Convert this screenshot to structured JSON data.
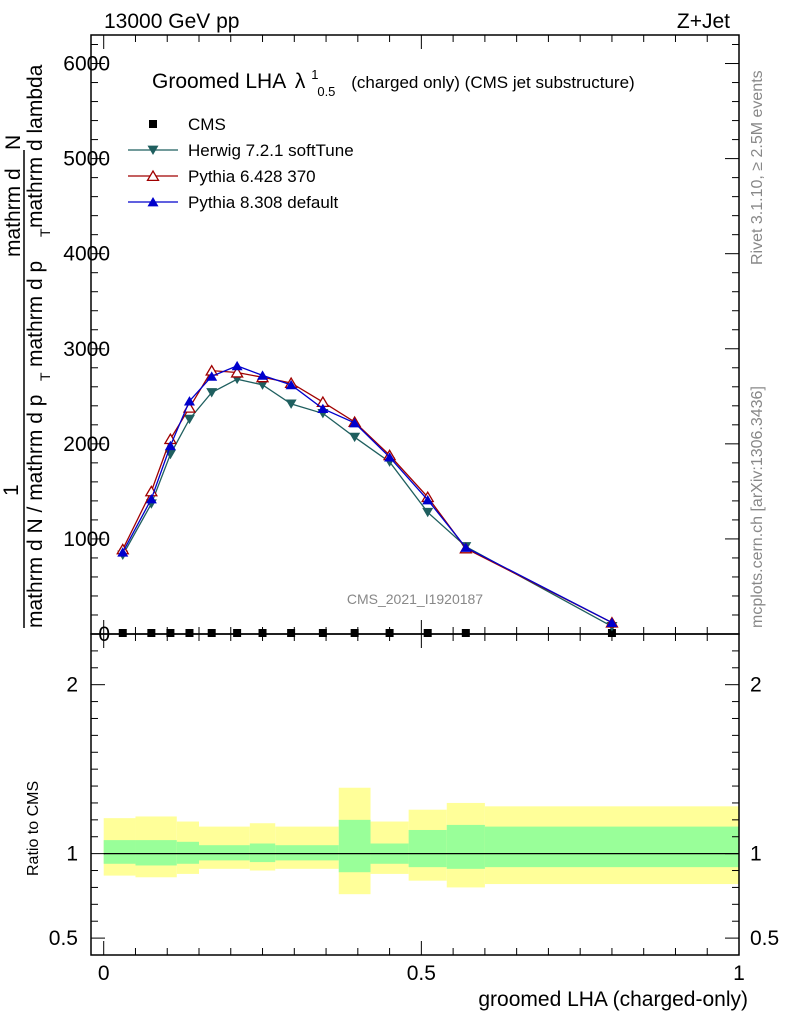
{
  "header": {
    "left": "13000 GeV pp",
    "right": "Z+Jet"
  },
  "side_labels": {
    "rivet": "Rivet 3.1.10, ≥ 2.5M events",
    "mcplots": "mcplots.cern.ch [arXiv:1306.3436]"
  },
  "watermark": "CMS_2021_I1920187",
  "colors": {
    "herwig": "#1f5f5f",
    "pythia6": "#a00000",
    "pythia8": "#0000cc",
    "data": "#000000",
    "band_outer": "#ffff99",
    "band_inner": "#99ff99"
  },
  "chart_data": [
    {
      "type": "line",
      "title": "Groomed LHA",
      "title_lambda": "λ",
      "title_sup": "1",
      "title_sub": "0.5",
      "title_suffix": "(charged only) (CMS jet substructure)",
      "ylabel_top_a": "mathrm d",
      "ylabel_top_b": "N",
      "ylabel_top_c": "mathrm d p",
      "ylabel_top_sub": "T",
      "ylabel_top_d": " mathrm d lambda",
      "ylabel_one": "1",
      "ylabel_bottom": "mathrm d N / mathrm d p",
      "ylabel_bottom_sub": "T",
      "ylim": [
        0,
        6300
      ],
      "xlim": [
        -0.02,
        1.0
      ],
      "yticks": [
        0,
        1000,
        2000,
        3000,
        4000,
        5000,
        6000
      ],
      "ytick_labels": [
        "0",
        "1000",
        "2000",
        "3000",
        "4000",
        "5000",
        "6000"
      ],
      "legend": [
        "CMS",
        "Herwig 7.2.1 softTune",
        "Pythia 6.428 370",
        "Pythia 8.308 default"
      ],
      "legend_position": "top-left",
      "x": [
        0.03,
        0.075,
        0.105,
        0.135,
        0.17,
        0.21,
        0.25,
        0.295,
        0.345,
        0.395,
        0.45,
        0.51,
        0.57,
        0.8
      ],
      "series": [
        {
          "name": "CMS",
          "marker": "square",
          "values": [
            0,
            0,
            0,
            0,
            0,
            0,
            0,
            0,
            0,
            0,
            0,
            0,
            0,
            0
          ]
        },
        {
          "name": "Herwig 7.2.1 softTune",
          "marker": "triangle-down",
          "values": [
            830,
            1370,
            1890,
            2260,
            2540,
            2680,
            2620,
            2420,
            2320,
            2070,
            1810,
            1280,
            920,
            80
          ]
        },
        {
          "name": "Pythia 6.428 370",
          "marker": "triangle-up-open",
          "values": [
            890,
            1500,
            2050,
            2380,
            2770,
            2750,
            2700,
            2640,
            2440,
            2230,
            1880,
            1440,
            900,
            120
          ]
        },
        {
          "name": "Pythia 8.308 default",
          "marker": "triangle-up",
          "values": [
            860,
            1420,
            1980,
            2450,
            2710,
            2820,
            2720,
            2620,
            2370,
            2220,
            1860,
            1410,
            910,
            120
          ]
        }
      ]
    },
    {
      "type": "area",
      "ylabel": "Ratio to CMS",
      "xlabel": "groomed LHA (charged-only)",
      "ylim": [
        0.4,
        2.3
      ],
      "xlim": [
        -0.02,
        1.0
      ],
      "yticks": [
        0.5,
        1,
        2
      ],
      "ytick_labels": [
        "0.5",
        "1",
        "2"
      ],
      "xticks": [
        0,
        0.5,
        1
      ],
      "xtick_labels": [
        "0",
        "0.5",
        "1"
      ],
      "bins": [
        {
          "lo": 0.0,
          "hi": 0.05,
          "outer": [
            0.87,
            1.21
          ],
          "inner": [
            0.94,
            1.08
          ]
        },
        {
          "lo": 0.05,
          "hi": 0.115,
          "outer": [
            0.86,
            1.22
          ],
          "inner": [
            0.93,
            1.08
          ]
        },
        {
          "lo": 0.115,
          "hi": 0.15,
          "outer": [
            0.88,
            1.19
          ],
          "inner": [
            0.94,
            1.07
          ]
        },
        {
          "lo": 0.15,
          "hi": 0.23,
          "outer": [
            0.91,
            1.16
          ],
          "inner": [
            0.96,
            1.05
          ]
        },
        {
          "lo": 0.23,
          "hi": 0.27,
          "outer": [
            0.9,
            1.18
          ],
          "inner": [
            0.95,
            1.06
          ]
        },
        {
          "lo": 0.27,
          "hi": 0.37,
          "outer": [
            0.91,
            1.16
          ],
          "inner": [
            0.96,
            1.05
          ]
        },
        {
          "lo": 0.37,
          "hi": 0.42,
          "outer": [
            0.76,
            1.39
          ],
          "inner": [
            0.89,
            1.2
          ]
        },
        {
          "lo": 0.42,
          "hi": 0.48,
          "outer": [
            0.88,
            1.19
          ],
          "inner": [
            0.94,
            1.06
          ]
        },
        {
          "lo": 0.48,
          "hi": 0.54,
          "outer": [
            0.84,
            1.26
          ],
          "inner": [
            0.92,
            1.14
          ]
        },
        {
          "lo": 0.54,
          "hi": 0.6,
          "outer": [
            0.8,
            1.3
          ],
          "inner": [
            0.91,
            1.17
          ]
        },
        {
          "lo": 0.6,
          "hi": 1.0,
          "outer": [
            0.82,
            1.28
          ],
          "inner": [
            0.92,
            1.16
          ]
        }
      ],
      "reference": 1.0
    }
  ]
}
